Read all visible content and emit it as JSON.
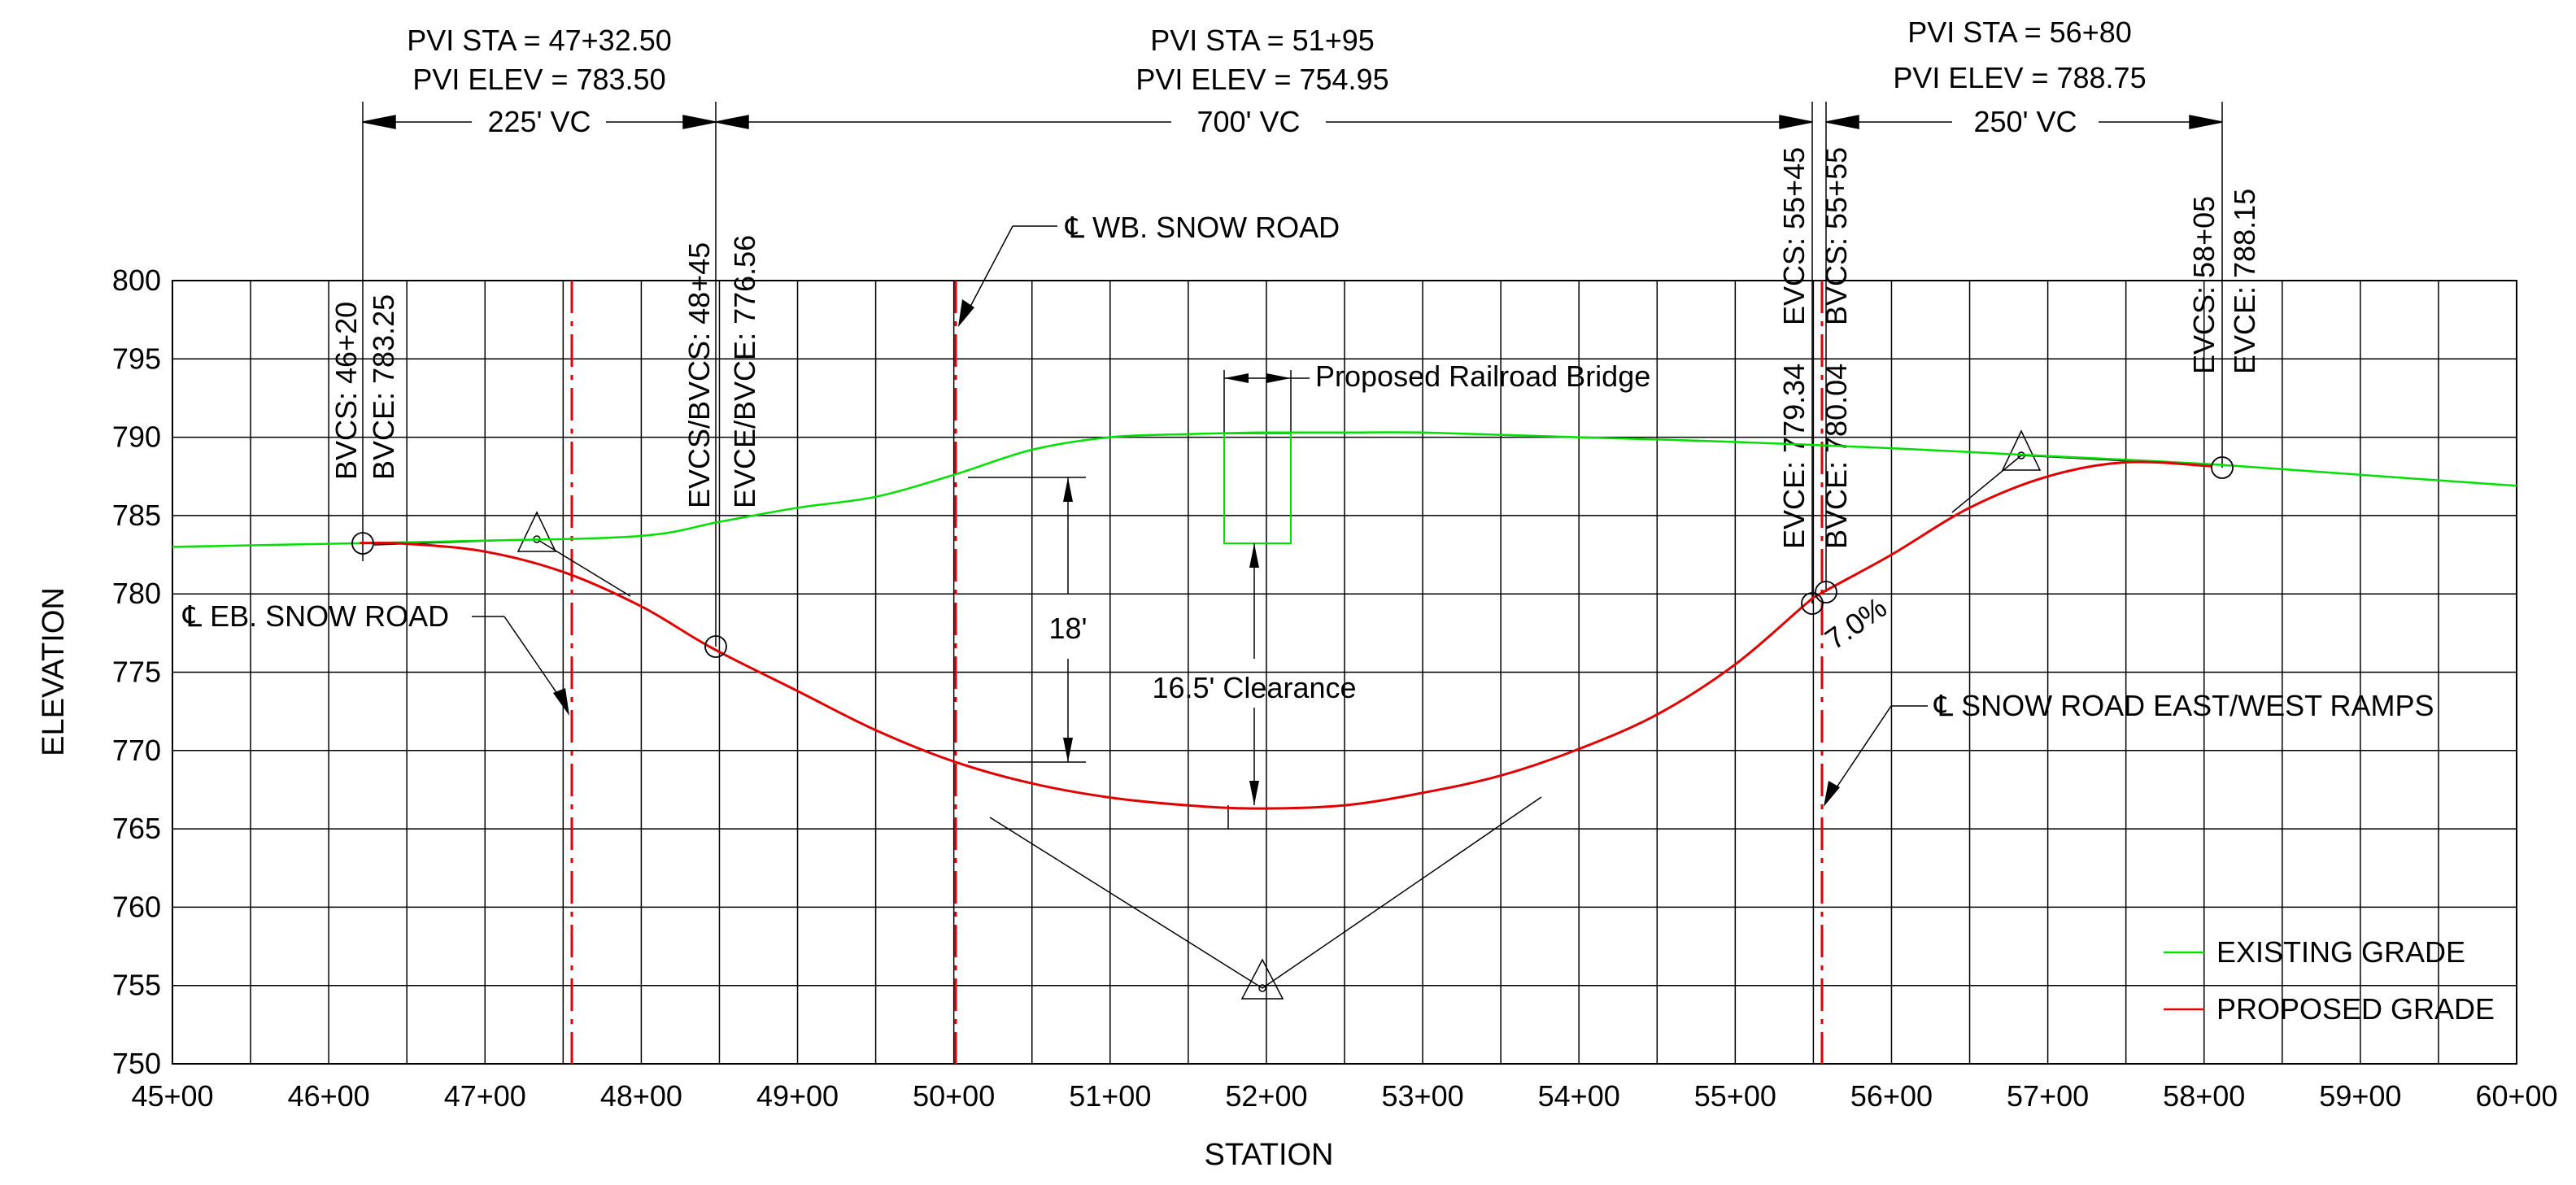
{
  "chart_data": {
    "type": "line",
    "title": "",
    "xlabel": "STATION",
    "ylabel": "ELEVATION",
    "xlim": [
      4500,
      6000
    ],
    "ylim": [
      750,
      800
    ],
    "x_ticks": [
      "45+00",
      "46+00",
      "47+00",
      "48+00",
      "49+00",
      "50+00",
      "51+00",
      "52+00",
      "53+00",
      "54+00",
      "55+00",
      "56+00",
      "57+00",
      "58+00",
      "59+00",
      "60+00"
    ],
    "y_ticks": [
      "750",
      "755",
      "760",
      "765",
      "770",
      "775",
      "780",
      "785",
      "790",
      "795",
      "800"
    ],
    "grid": true,
    "legend_position": "bottom-right",
    "series": [
      {
        "name": "EXISTING GRADE",
        "color": "#00e000",
        "x": [
          4500,
          4600,
          4700,
          4800,
          4850,
          4900,
          4950,
          5000,
          5050,
          5100,
          5150,
          5200,
          5250,
          5300,
          5400,
          5500,
          5600,
          5700,
          5800,
          5900,
          6000
        ],
        "y": [
          783.0,
          783.2,
          783.4,
          783.7,
          784.6,
          785.5,
          786.2,
          787.6,
          789.2,
          790.0,
          790.2,
          790.3,
          790.3,
          790.3,
          790.0,
          789.7,
          789.3,
          788.8,
          788.3,
          787.6,
          786.9
        ]
      },
      {
        "name": "PROPOSED GRADE",
        "color": "#e00000",
        "x": [
          4620,
          4650,
          4700,
          4750,
          4800,
          4845,
          4900,
          4950,
          5000,
          5050,
          5100,
          5150,
          5195,
          5250,
          5300,
          5350,
          5400,
          5450,
          5500,
          5545,
          5555,
          5600,
          5650,
          5700,
          5750,
          5805
        ],
        "y": [
          783.25,
          783.2,
          782.7,
          781.4,
          779.2,
          776.56,
          773.8,
          771.3,
          769.3,
          767.9,
          767.0,
          766.5,
          766.3,
          766.5,
          767.3,
          768.4,
          770.1,
          772.3,
          775.5,
          779.34,
          780.04,
          782.5,
          785.5,
          787.5,
          788.4,
          788.15
        ]
      }
    ],
    "annotations": {
      "pvi_1": {
        "sta": "PVI STA = 47+32.50",
        "elev": "PVI ELEV = 783.50",
        "vc": "225' VC"
      },
      "pvi_2": {
        "sta": "PVI STA = 51+95",
        "elev": "PVI ELEV = 754.95",
        "vc": "700' VC"
      },
      "pvi_3": {
        "sta": "PVI STA = 56+80",
        "elev": "PVI ELEV = 788.75",
        "vc": "250' VC"
      },
      "bvcs_1": "BVCS: 46+20",
      "bvce_1": "BVCE: 783.25",
      "evcs_bvcs": "EVCS/BVCS: 48+45",
      "evce_bvce": "EVCE/BVCE: 776.56",
      "evcs_2": "EVCS: 55+45",
      "evce_2": "EVCE: 779.34",
      "bvcs_3": "BVCS: 55+55",
      "bvce_3": "BVCE: 780.04",
      "evcs_3": "EVCS: 58+05",
      "evce_3": "EVCE: 788.15",
      "wb_road": "℄ WB. SNOW ROAD",
      "eb_road": "℄ EB. SNOW ROAD",
      "ramps": "℄ SNOW ROAD EAST/WEST RAMPS",
      "bridge": "Proposed Railroad Bridge",
      "dim_18": "18'",
      "clearance": "16.5' Clearance",
      "grade": "7.0%"
    }
  }
}
